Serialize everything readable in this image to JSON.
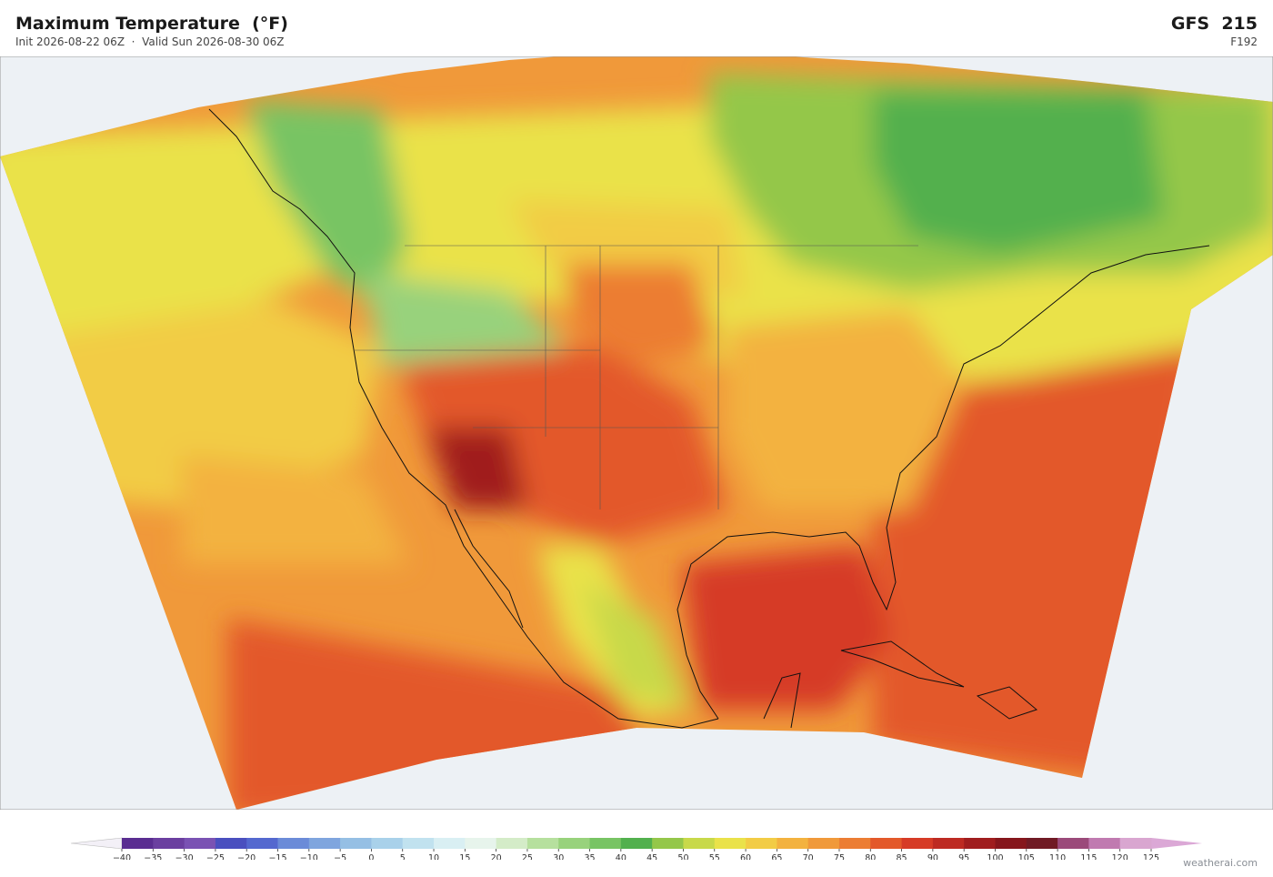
{
  "header": {
    "title": "Maximum Temperature  (°F)",
    "subtitle": "Init 2026-08-22 06Z  ·  Valid Sun 2026-08-30 06Z",
    "model": "GFS  215",
    "forecast_hour": "F192"
  },
  "colorbar": {
    "ticks": [
      {
        "value": -40,
        "label": "−40"
      },
      {
        "value": -35,
        "label": "−35"
      },
      {
        "value": -30,
        "label": "−30"
      },
      {
        "value": -25,
        "label": "−25"
      },
      {
        "value": -20,
        "label": "−20"
      },
      {
        "value": -15,
        "label": "−15"
      },
      {
        "value": -10,
        "label": "−10"
      },
      {
        "value": -5,
        "label": "−5"
      },
      0,
      5,
      10,
      15,
      20,
      25,
      30,
      35,
      40,
      45,
      50,
      55,
      60,
      65,
      70,
      75,
      80,
      85,
      90,
      95,
      100,
      105,
      110,
      115,
      120,
      125
    ],
    "colors": [
      "#5a2d91",
      "#6b3fa0",
      "#7a52b3",
      "#4a4fbf",
      "#5468cf",
      "#6b8bd8",
      "#7fa5de",
      "#95bfe4",
      "#a9d1ea",
      "#c1e2ef",
      "#d9eff3",
      "#e7f4ec",
      "#d4ecc8",
      "#b6e09e",
      "#98d27c",
      "#78c464",
      "#52b04e",
      "#94c74a",
      "#c8d94a",
      "#eae24a",
      "#f2cc45",
      "#f3b23f",
      "#f0993a",
      "#ec7d33",
      "#e3592a",
      "#d63b26",
      "#bd2a22",
      "#a01d1e",
      "#86161c",
      "#701a24",
      "#9b4a7a",
      "#c07ab0",
      "#d9a6d0"
    ],
    "under_color": "#f3f0f7",
    "over_color": "#dba8d6"
  },
  "attribution": "weatherai.com"
}
